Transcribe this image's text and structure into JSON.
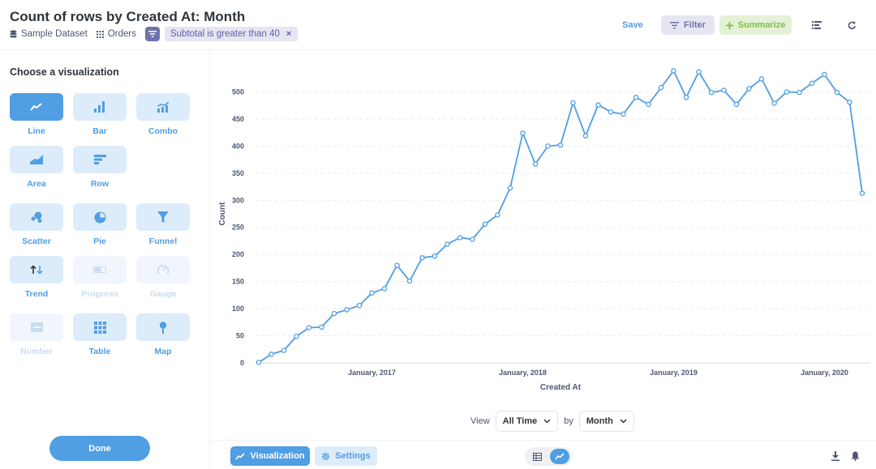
{
  "header": {
    "title": "Count of rows by Created At: Month",
    "breadcrumbs": [
      {
        "icon": "database-icon",
        "label": "Sample Dataset"
      },
      {
        "icon": "table-grid-icon",
        "label": "Orders"
      }
    ],
    "filter_pill": "Subtotal is greater than 40",
    "filter_remove": "×",
    "save_label": "Save",
    "filter_label": "Filter",
    "summarize_label": "Summarize"
  },
  "sidebar": {
    "title": "Choose a visualization",
    "done_label": "Done",
    "items": [
      {
        "key": "line",
        "label": "Line",
        "icon": "line-chart-icon",
        "state": "active"
      },
      {
        "key": "bar",
        "label": "Bar",
        "icon": "bar-chart-icon",
        "state": "enabled"
      },
      {
        "key": "combo",
        "label": "Combo",
        "icon": "combo-chart-icon",
        "state": "enabled"
      },
      {
        "key": "area",
        "label": "Area",
        "icon": "area-chart-icon",
        "state": "enabled"
      },
      {
        "key": "row",
        "label": "Row",
        "icon": "row-chart-icon",
        "state": "enabled"
      },
      {
        "key": "scatter",
        "label": "Scatter",
        "icon": "scatter-icon",
        "state": "enabled"
      },
      {
        "key": "pie",
        "label": "Pie",
        "icon": "pie-chart-icon",
        "state": "enabled"
      },
      {
        "key": "funnel",
        "label": "Funnel",
        "icon": "funnel-icon",
        "state": "enabled"
      },
      {
        "key": "trend",
        "label": "Trend",
        "icon": "trend-icon",
        "state": "enabled"
      },
      {
        "key": "progress",
        "label": "Progress",
        "icon": "progress-icon",
        "state": "disabled"
      },
      {
        "key": "gauge",
        "label": "Gauge",
        "icon": "gauge-icon",
        "state": "disabled"
      },
      {
        "key": "number",
        "label": "Number",
        "icon": "number-icon",
        "state": "disabled"
      },
      {
        "key": "table",
        "label": "Table",
        "icon": "table-icon",
        "state": "enabled"
      },
      {
        "key": "map",
        "label": "Map",
        "icon": "map-pin-icon",
        "state": "enabled"
      }
    ]
  },
  "chart_data": {
    "type": "line",
    "title": "",
    "xlabel": "Created At",
    "ylabel": "Count",
    "ylim": [
      0,
      550
    ],
    "yticks": [
      0,
      50,
      100,
      150,
      200,
      250,
      300,
      350,
      400,
      450,
      500
    ],
    "x_start": "2016-04",
    "x_end": "2020-04",
    "xtick_labels": [
      "January, 2017",
      "January, 2018",
      "January, 2019",
      "January, 2020"
    ],
    "grid": "horizontal",
    "color": "#509ee3",
    "series": [
      {
        "x": [
          "2016-04",
          "2016-05",
          "2016-06",
          "2016-07",
          "2016-08",
          "2016-09",
          "2016-10",
          "2016-11",
          "2016-12",
          "2017-01",
          "2017-02",
          "2017-03",
          "2017-04",
          "2017-05",
          "2017-06",
          "2017-07",
          "2017-08",
          "2017-09",
          "2017-10",
          "2017-11",
          "2017-12",
          "2018-01",
          "2018-02",
          "2018-03",
          "2018-04",
          "2018-05",
          "2018-06",
          "2018-07",
          "2018-08",
          "2018-09",
          "2018-10",
          "2018-11",
          "2018-12",
          "2019-01",
          "2019-02",
          "2019-03",
          "2019-04",
          "2019-05",
          "2019-06",
          "2019-07",
          "2019-08",
          "2019-09",
          "2019-10",
          "2019-11",
          "2019-12",
          "2020-01",
          "2020-02",
          "2020-03",
          "2020-04"
        ],
        "values": [
          1,
          16,
          23,
          49,
          65,
          66,
          91,
          98,
          106,
          129,
          137,
          180,
          151,
          194,
          197,
          219,
          231,
          228,
          256,
          273,
          323,
          424,
          367,
          400,
          402,
          480,
          419,
          476,
          463,
          459,
          490,
          477,
          508,
          539,
          490,
          537,
          499,
          503,
          477,
          506,
          524,
          479,
          500,
          499,
          516,
          532,
          499,
          481,
          313
        ]
      }
    ]
  },
  "controls": {
    "view_label": "View",
    "view_value": "All Time",
    "by_label": "by",
    "by_value": "Month"
  },
  "footer": {
    "visualization_label": "Visualization",
    "settings_label": "Settings"
  }
}
